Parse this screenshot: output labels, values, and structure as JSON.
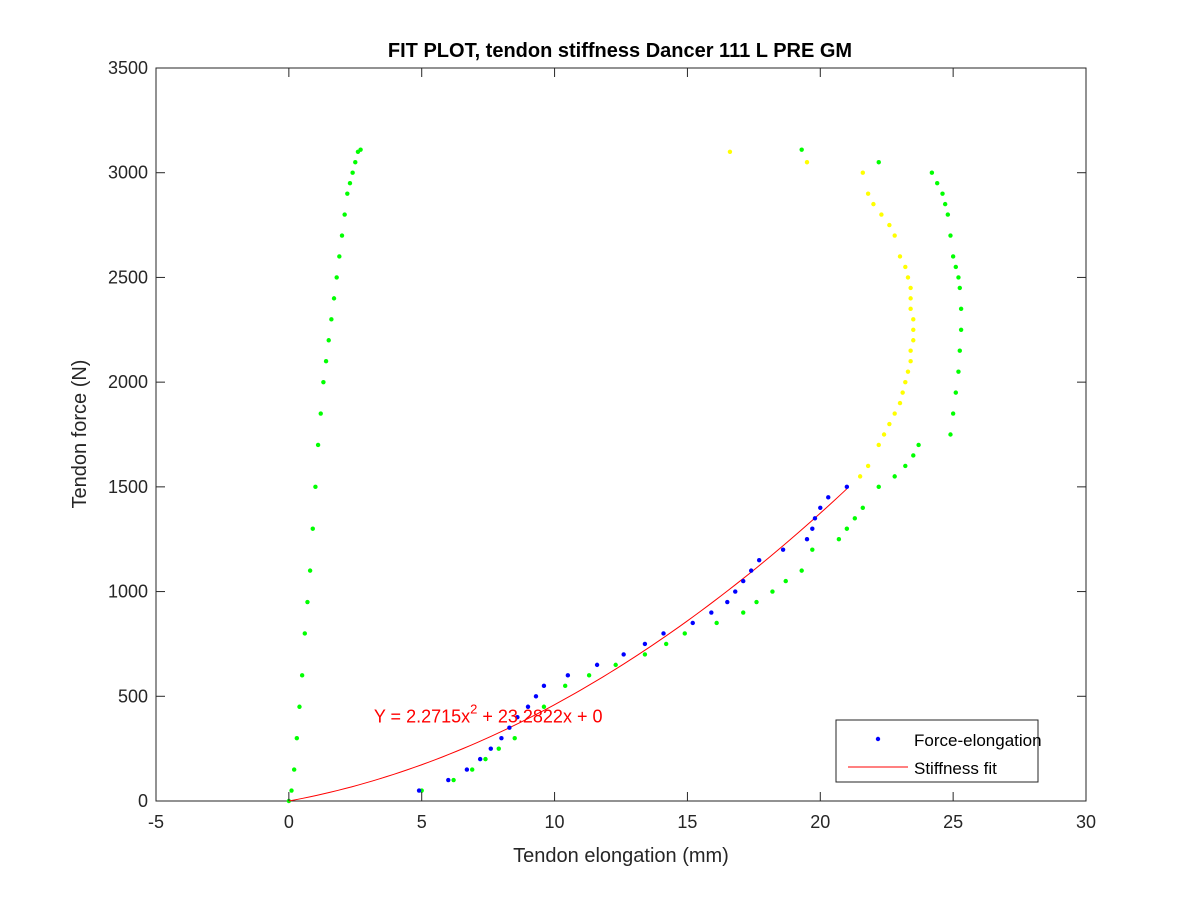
{
  "chart_data": {
    "type": "scatter",
    "title": "FIT PLOT, tendon stiffness Dancer 111 L PRE GM",
    "xlabel": "Tendon elongation (mm)",
    "ylabel": "Tendon force (N)",
    "xlim": [
      -5,
      30
    ],
    "ylim": [
      0,
      3500
    ],
    "xticks": [
      -5,
      0,
      5,
      10,
      15,
      20,
      25,
      30
    ],
    "yticks": [
      0,
      500,
      1000,
      1500,
      2000,
      2500,
      3000,
      3500
    ],
    "grid": false,
    "legend_position": "bottom-right",
    "annotation": {
      "prefix": "Y = 2.2715x",
      "sup": "2",
      "suffix": " + 23.2822x + 0",
      "x": 3.2,
      "y": 375
    },
    "colors": {
      "force_elongation": "#0000ff",
      "fit": "#ff0000",
      "trial_green": "#00ff00",
      "trial_yellow": "#ffff00"
    },
    "fit": {
      "a": 2.2715,
      "b": 23.2822,
      "c": 0,
      "x_range": [
        0,
        21
      ]
    },
    "series": [
      {
        "name": "Force-elongation",
        "color": "#0000ff",
        "x": [
          4.9,
          6.0,
          6.7,
          7.2,
          7.6,
          8.0,
          8.3,
          8.6,
          9.0,
          9.3,
          9.6,
          10.5,
          11.6,
          12.6,
          13.4,
          14.1,
          15.2,
          15.9,
          16.5,
          16.8,
          17.1,
          17.4,
          17.7,
          18.6,
          19.5,
          19.7,
          19.8,
          20.0,
          20.3,
          21.0
        ],
        "y": [
          50,
          100,
          150,
          200,
          250,
          300,
          350,
          400,
          450,
          500,
          550,
          600,
          650,
          700,
          750,
          800,
          850,
          900,
          950,
          1000,
          1050,
          1100,
          1150,
          1200,
          1250,
          1300,
          1350,
          1400,
          1450,
          1500
        ]
      },
      {
        "name": "Stiffness fit",
        "color": "#ff0000",
        "x": [],
        "y": []
      }
    ],
    "extra_traces": [
      {
        "color": "#00ff00",
        "x": [
          0.0,
          0.1,
          0.2,
          0.3,
          0.4,
          0.5,
          0.6,
          0.7,
          0.8,
          0.9,
          1.0,
          1.1,
          1.2,
          1.3,
          1.4,
          1.5,
          1.6,
          1.7,
          1.8,
          1.9,
          2.0,
          2.1,
          2.2,
          2.3,
          2.4,
          2.5,
          2.6,
          2.7
        ],
        "y": [
          0,
          50,
          150,
          300,
          450,
          600,
          800,
          950,
          1100,
          1300,
          1500,
          1700,
          1850,
          2000,
          2100,
          2200,
          2300,
          2400,
          2500,
          2600,
          2700,
          2800,
          2900,
          2950,
          3000,
          3050,
          3100,
          3110
        ]
      },
      {
        "color": "#00ff00",
        "x": [
          5.0,
          6.2,
          6.9,
          7.4,
          7.9,
          8.5,
          9.6,
          10.4,
          11.3,
          12.3,
          13.4,
          14.2,
          14.9,
          16.1,
          17.1,
          17.6,
          18.2,
          18.7,
          19.3,
          19.7,
          20.7,
          21.0,
          21.3,
          21.6,
          22.2,
          22.8,
          23.2,
          23.5,
          23.7
        ],
        "y": [
          50,
          100,
          150,
          200,
          250,
          300,
          450,
          550,
          600,
          650,
          700,
          750,
          800,
          850,
          900,
          950,
          1000,
          1050,
          1100,
          1200,
          1250,
          1300,
          1350,
          1400,
          1500,
          1550,
          1600,
          1650,
          1700
        ]
      },
      {
        "color": "#00ff00",
        "x": [
          24.9,
          25.0,
          25.1,
          25.2,
          25.25,
          25.3,
          25.3,
          25.25,
          25.2,
          25.1,
          25.0,
          24.9,
          24.8,
          24.7,
          24.6,
          24.4,
          24.2
        ],
        "y": [
          1750,
          1850,
          1950,
          2050,
          2150,
          2250,
          2350,
          2450,
          2500,
          2550,
          2600,
          2700,
          2800,
          2850,
          2900,
          2950,
          3000
        ]
      },
      {
        "color": "#00ff00",
        "x": [
          19.3,
          22.2
        ],
        "y": [
          3110,
          3050
        ]
      },
      {
        "color": "#ffff00",
        "x": [
          21.5,
          21.8,
          22.2,
          22.4,
          22.6,
          22.8,
          23.0,
          23.1,
          23.2,
          23.3,
          23.4,
          23.4,
          23.5,
          23.5,
          23.5,
          23.4,
          23.4,
          23.4,
          23.3,
          23.2,
          23.0,
          22.8,
          22.6,
          22.3,
          22.0,
          21.8,
          21.6,
          19.5,
          16.6
        ],
        "y": [
          1550,
          1600,
          1700,
          1750,
          1800,
          1850,
          1900,
          1950,
          2000,
          2050,
          2100,
          2150,
          2200,
          2250,
          2300,
          2350,
          2400,
          2450,
          2500,
          2550,
          2600,
          2700,
          2750,
          2800,
          2850,
          2900,
          3000,
          3050,
          3100
        ]
      }
    ]
  }
}
